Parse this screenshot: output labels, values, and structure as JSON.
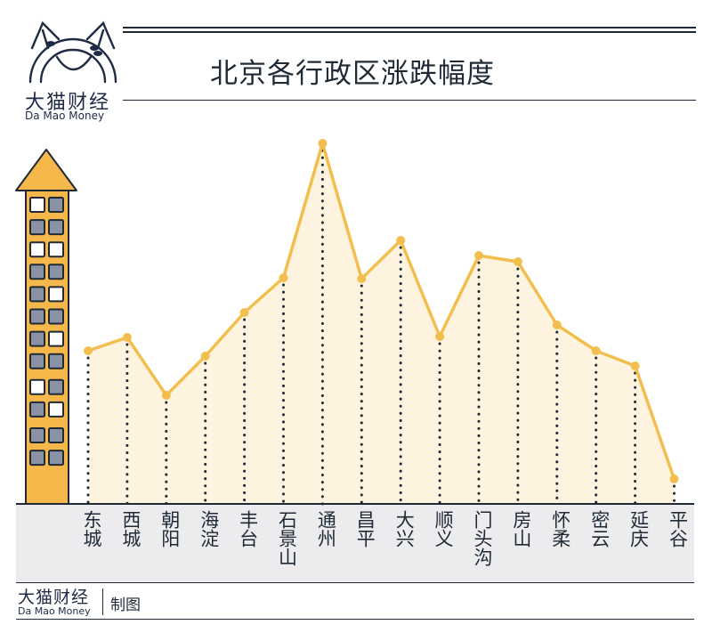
{
  "brand": {
    "name_cn": "大猫财经",
    "name_en": "Da Mao Money"
  },
  "header": {
    "title": "北京各行政区涨跌幅度"
  },
  "footer": {
    "brand_cn": "大猫财经",
    "brand_en": "Da Mao Money",
    "credit": "制图"
  },
  "colors": {
    "line": "#f2bf4f",
    "area_fill": "#fdf3de",
    "building": "#f7b84b",
    "window_gray": "#8a93a6",
    "window_white": "#ffffff",
    "label_band": "#ececee",
    "ink": "#1f2a36"
  },
  "building": {
    "windows": [
      [
        "white",
        "gray"
      ],
      [
        "gray",
        "gray"
      ],
      [
        "white",
        "white"
      ],
      [
        "gray",
        "gray"
      ],
      [
        "gray",
        "white"
      ],
      [
        "gray",
        "gray"
      ],
      [
        "gray",
        "white"
      ],
      [
        "gray",
        "gray"
      ],
      [
        "white",
        "gray"
      ],
      [
        "gray",
        "white"
      ],
      [
        "gray",
        "gray"
      ],
      [
        "gray",
        "gray"
      ]
    ]
  },
  "chart_data": {
    "type": "area",
    "title": "北京各行政区涨跌幅度",
    "xlabel": "",
    "ylabel": "",
    "note": "No y-axis scale is shown; values are relative heights in pixels above the baseline.",
    "categories": [
      "东城",
      "西城",
      "朝阳",
      "海淀",
      "丰台",
      "石景山",
      "通州",
      "昌平",
      "大兴",
      "顺义",
      "门头沟",
      "房山",
      "怀柔",
      "密云",
      "延庆",
      "平谷"
    ],
    "values": [
      172,
      187,
      122,
      166,
      215,
      254,
      405,
      253,
      296,
      188,
      279,
      272,
      201,
      172,
      155,
      28
    ],
    "ylim": [
      0,
      420
    ],
    "grid": false,
    "legend": "none",
    "marker": "circle",
    "drop_lines": "dotted"
  }
}
